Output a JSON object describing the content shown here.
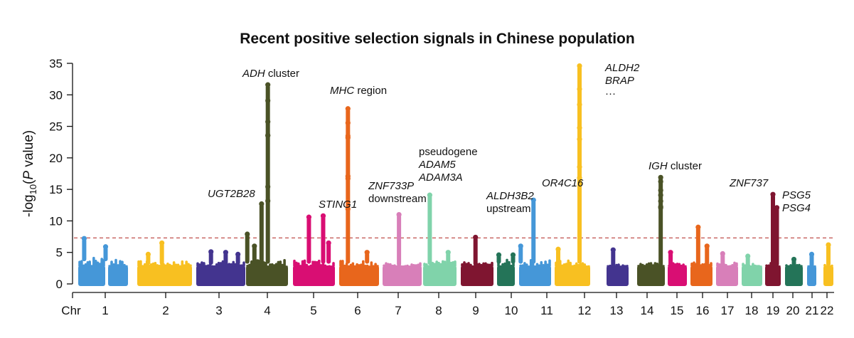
{
  "chart_data": {
    "type": "scatter",
    "subtype": "manhattan",
    "title": "Recent positive selection signals in Chinese population",
    "xlabel": "Chr",
    "ylabel_prefix": "-log",
    "ylabel_sub": "10",
    "ylabel_open": "(",
    "ylabel_italic": "P",
    "ylabel_suffix": " value)",
    "ylim": [
      0,
      35
    ],
    "yticks": [
      0,
      5,
      10,
      15,
      20,
      25,
      30,
      35
    ],
    "threshold": {
      "value": 7.3,
      "color": "#c0504d",
      "style": "dashed"
    },
    "grid": false,
    "legend": "none",
    "chromosomes": [
      {
        "name": "1",
        "color": "#4597d8",
        "background_max": 4.5,
        "peaks": [
          {
            "pos": 0.12,
            "value": 7.2
          },
          {
            "pos": 0.55,
            "value": 5.9
          }
        ]
      },
      {
        "name": "2",
        "color": "#f8c021",
        "background_max": 3.8,
        "peaks": [
          {
            "pos": 0.45,
            "value": 6.5
          },
          {
            "pos": 0.2,
            "value": 4.7
          }
        ]
      },
      {
        "name": "3",
        "color": "#43348f",
        "background_max": 3.8,
        "peaks": [
          {
            "pos": 0.3,
            "value": 5.1
          },
          {
            "pos": 0.6,
            "value": 5.0
          },
          {
            "pos": 0.85,
            "value": 4.7
          }
        ]
      },
      {
        "name": "4",
        "color": "#4a5226",
        "background_max": 4.0,
        "peaks": [
          {
            "pos": 0.03,
            "value": 7.9
          },
          {
            "pos": 0.37,
            "value": 12.7
          },
          {
            "pos": 0.52,
            "value": 31.6
          },
          {
            "pos": 0.2,
            "value": 6.0
          }
        ]
      },
      {
        "name": "5",
        "color": "#d90e73",
        "background_max": 4.0,
        "peaks": [
          {
            "pos": 0.38,
            "value": 10.6
          },
          {
            "pos": 0.72,
            "value": 10.8
          },
          {
            "pos": 0.85,
            "value": 6.5
          }
        ]
      },
      {
        "name": "6",
        "color": "#e8661c",
        "background_max": 4.0,
        "peaks": [
          {
            "pos": 0.22,
            "value": 27.8
          },
          {
            "pos": 0.7,
            "value": 5.0
          }
        ]
      },
      {
        "name": "7",
        "color": "#d87fb9",
        "background_max": 3.5,
        "peaks": [
          {
            "pos": 0.42,
            "value": 11.0
          }
        ]
      },
      {
        "name": "8",
        "color": "#80d3aa",
        "background_max": 3.8,
        "peaks": [
          {
            "pos": 0.2,
            "value": 14.1
          },
          {
            "pos": 0.75,
            "value": 5.0
          }
        ]
      },
      {
        "name": "9",
        "color": "#7f1530",
        "background_max": 3.6,
        "peaks": [
          {
            "pos": 0.45,
            "value": 7.4
          }
        ]
      },
      {
        "name": "10",
        "color": "#247458",
        "background_max": 4.0,
        "peaks": [
          {
            "pos": 0.1,
            "value": 4.6
          },
          {
            "pos": 0.9,
            "value": 4.6
          }
        ]
      },
      {
        "name": "11",
        "color": "#4597d8",
        "background_max": 4.0,
        "peaks": [
          {
            "pos": 0.45,
            "value": 13.3
          },
          {
            "pos": 0.05,
            "value": 6.0
          }
        ]
      },
      {
        "name": "12",
        "color": "#f8c021",
        "background_max": 4.0,
        "peaks": [
          {
            "pos": 0.7,
            "value": 34.6
          },
          {
            "pos": 0.1,
            "value": 5.5
          }
        ]
      },
      {
        "name": "13",
        "color": "#43348f",
        "background_max": 3.3,
        "peaks": [
          {
            "pos": 0.3,
            "value": 5.4
          }
        ]
      },
      {
        "name": "14",
        "color": "#4a5226",
        "background_max": 3.5,
        "peaks": [
          {
            "pos": 0.85,
            "value": 16.9
          }
        ]
      },
      {
        "name": "15",
        "color": "#d90e73",
        "background_max": 3.5,
        "peaks": [
          {
            "pos": 0.15,
            "value": 5.0
          }
        ]
      },
      {
        "name": "16",
        "color": "#e8661c",
        "background_max": 3.6,
        "peaks": [
          {
            "pos": 0.35,
            "value": 9.0
          },
          {
            "pos": 0.75,
            "value": 6.0
          }
        ]
      },
      {
        "name": "17",
        "color": "#d87fb9",
        "background_max": 3.6,
        "peaks": [
          {
            "pos": 0.3,
            "value": 4.8
          }
        ]
      },
      {
        "name": "18",
        "color": "#80d3aa",
        "background_max": 3.4,
        "peaks": [
          {
            "pos": 0.3,
            "value": 4.4
          }
        ]
      },
      {
        "name": "19",
        "color": "#7f1530",
        "background_max": 3.5,
        "peaks": [
          {
            "pos": 0.5,
            "value": 14.2
          },
          {
            "pos": 0.75,
            "value": 12.1
          }
        ]
      },
      {
        "name": "20",
        "color": "#247458",
        "background_max": 3.4,
        "peaks": [
          {
            "pos": 0.5,
            "value": 3.9
          }
        ]
      },
      {
        "name": "21",
        "color": "#4597d8",
        "background_max": 3.0,
        "peaks": [
          {
            "pos": 0.5,
            "value": 4.7
          }
        ]
      },
      {
        "name": "22",
        "color": "#f8c021",
        "background_max": 3.5,
        "peaks": [
          {
            "pos": 0.5,
            "value": 6.2
          }
        ]
      }
    ],
    "annotations": [
      {
        "chr": "4",
        "value": 31.6,
        "parts": [
          {
            "text": "ADH",
            "italic": true
          },
          {
            "text": " cluster",
            "italic": false
          }
        ]
      },
      {
        "chr": "4",
        "value": 12.7,
        "parts": [
          {
            "text": "UGT2B28",
            "italic": true
          }
        ]
      },
      {
        "chr": "5",
        "value": 10.8,
        "parts": [
          {
            "text": "STING1",
            "italic": true
          }
        ]
      },
      {
        "chr": "6",
        "value": 27.8,
        "parts": [
          {
            "text": "MHC",
            "italic": true
          },
          {
            "text": " region",
            "italic": false
          }
        ]
      },
      {
        "chr": "7",
        "value": 11.0,
        "parts": [
          {
            "text": "ZNF733P",
            "italic": true
          }
        ],
        "line2": [
          {
            "text": "downstream",
            "italic": false
          }
        ]
      },
      {
        "chr": "8",
        "value": 14.1,
        "parts": [
          {
            "text": "pseudogene",
            "italic": false
          }
        ],
        "line2": [
          {
            "text": "ADAM5",
            "italic": true
          }
        ],
        "line3": [
          {
            "text": "ADAM3A",
            "italic": true
          }
        ]
      },
      {
        "chr": "11",
        "value": 13.3,
        "parts": [
          {
            "text": "ALDH3B2",
            "italic": true
          }
        ],
        "line2": [
          {
            "text": "upstream",
            "italic": false
          }
        ]
      },
      {
        "chr": "11",
        "value": 13.3,
        "parts": [
          {
            "text": "OR4C16",
            "italic": true
          }
        ]
      },
      {
        "chr": "12",
        "value": 34.6,
        "parts": [
          {
            "text": "ALDH2",
            "italic": true
          }
        ],
        "line2": [
          {
            "text": "BRAP",
            "italic": true
          }
        ],
        "line3": [
          {
            "text": "···",
            "italic": false
          }
        ]
      },
      {
        "chr": "14",
        "value": 16.9,
        "parts": [
          {
            "text": "IGH",
            "italic": true
          },
          {
            "text": " cluster",
            "italic": false
          }
        ]
      },
      {
        "chr": "19",
        "value": 14.2,
        "parts": [
          {
            "text": "ZNF737",
            "italic": true
          }
        ]
      },
      {
        "chr": "19",
        "value": 12.1,
        "parts": [
          {
            "text": "PSG5",
            "italic": true
          }
        ],
        "line2": [
          {
            "text": "PSG4",
            "italic": true
          }
        ]
      }
    ]
  }
}
